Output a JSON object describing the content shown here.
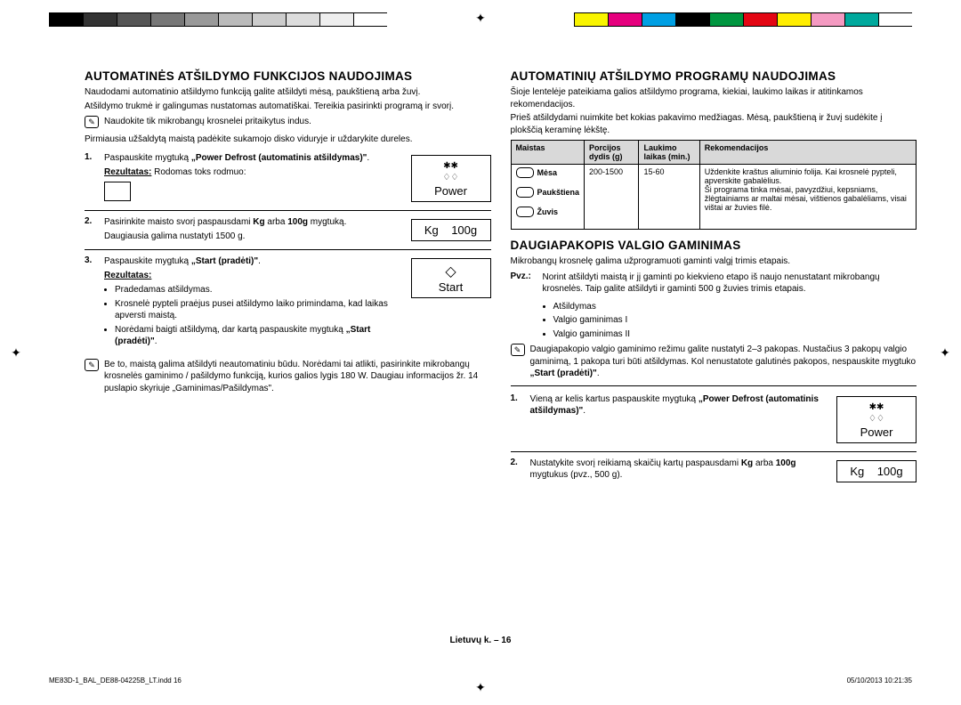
{
  "color_bars_left": [
    "#000",
    "#333",
    "#555",
    "#777",
    "#999",
    "#bbb",
    "#ccc",
    "#ddd",
    "#eee",
    "#fff"
  ],
  "color_bars_right": [
    "#f9f400",
    "#e6007e",
    "#009fe3",
    "#000",
    "#009640",
    "#e30613",
    "#ffed00",
    "#f49ac1",
    "#00a99d",
    "#fff"
  ],
  "left": {
    "h2": "AUTOMATINĖS ATŠILDYMO FUNKCIJOS NAUDOJIMAS",
    "p1": "Naudodami automatinio atšildymo funkciją galite atšildyti mėsą, paukštieną arba žuvį.",
    "p2": "Atšildymo trukmė ir galingumas nustatomas automatiškai. Tereikia pasirinkti programą ir svorį.",
    "note1": "Naudokite tik mikrobangų krosnelei pritaikytus indus.",
    "p3": "Pirmiausia užšaldytą maistą padėkite sukamojo disko viduryje ir uždarykite dureles.",
    "step1_num": "1.",
    "step1_a": "Paspauskite mygtuką ",
    "step1_b": "„Power Defrost (automatinis atšildymas)\"",
    "step1_c": ".",
    "step1_res_label": "Rezultatas:",
    "step1_res": " Rodomas toks rodmuo:",
    "power_label": "Power",
    "step2_num": "2.",
    "step2_a": "Pasirinkite maisto svorį paspausdami ",
    "step2_kg": "Kg",
    "step2_b": " arba ",
    "step2_100g": "100g",
    "step2_c": " mygtuką.",
    "step2_d": "Daugiausia galima nustatyti 1500 g.",
    "kg_btn": "Kg",
    "g100_btn": "100g",
    "step3_num": "3.",
    "step3_a": "Paspauskite mygtuką ",
    "step3_b": "„Start (pradėti)\"",
    "step3_c": ".",
    "step3_res_label": "Rezultatas:",
    "start_label": "Start",
    "step3_li1": "Pradedamas atšildymas.",
    "step3_li2": "Krosnelė pypteli praėjus pusei atšildymo laiko primindama, kad laikas apversti maistą.",
    "step3_li3_a": "Norėdami baigti atšildymą, dar kartą paspauskite mygtuką ",
    "step3_li3_b": "„Start (pradėti)\"",
    "step3_li3_c": ".",
    "note2": "Be to, maistą galima atšildyti neautomatiniu būdu. Norėdami tai atlikti, pasirinkite mikrobangų krosnelės gaminimo / pašildymo funkciją, kurios galios lygis 180 W. Daugiau informacijos žr. 14 puslapio skyriuje „Gaminimas/Pašildymas\"."
  },
  "right": {
    "h2a": "AUTOMATINIŲ ATŠILDYMO PROGRAMŲ NAUDOJIMAS",
    "p1": "Šioje lentelėje pateikiama galios atšildymo programa, kiekiai, laukimo laikas ir atitinkamos rekomendacijos.",
    "p2": "Prieš atšildydami nuimkite bet kokias pakavimo medžiagas. Mėsą, paukštieną ir žuvį sudėkite į plokščią keraminę lėkštę.",
    "table": {
      "headers": [
        "Maistas",
        "Porcijos dydis (g)",
        "Laukimo laikas (min.)",
        "Rekomendacijos"
      ],
      "foods": [
        "Mėsa",
        "Paukštiena",
        "Žuvis"
      ],
      "portion": "200-1500",
      "wait": "15-60",
      "rec": "Uždenkite kraštus aliuminio folija. Kai krosnelė pypteli, apverskite gabalėlius.\nŠi programa tinka mėsai, pavyzdžiui, kepsniams, žlėgtainiams ar maltai mėsai, vištienos gabalėliams, visai vištai ar žuvies filė."
    },
    "h2b": "DAUGIAPAKOPIS VALGIO GAMINIMAS",
    "p3": "Mikrobangų krosnelę galima užprogramuoti gaminti valgį trimis etapais.",
    "pvz_label": "Pvz.:",
    "pvz_text": "Norint atšildyti maistą ir jį gaminti po kiekvieno etapo iš naujo nenustatant mikrobangų krosnelės. Taip galite atšildyti ir gaminti 500 g žuvies trimis etapais.",
    "li1": "Atšildymas",
    "li2": "Valgio gaminimas I",
    "li3": "Valgio gaminimas II",
    "note3_a": "Daugiapakopio valgio gaminimo režimu galite nustatyti 2–3 pakopas. Nustačius 3 pakopų valgio gaminimą, 1 pakopa turi būti atšildymas. Kol nenustatote galutinės pakopos, nespauskite mygtuko ",
    "note3_b": "„Start (pradėti)\"",
    "note3_c": ".",
    "rstep1_num": "1.",
    "rstep1_a": "Vieną ar kelis kartus paspauskite mygtuką ",
    "rstep1_b": "„Power Defrost (automatinis atšildymas)\"",
    "rstep1_c": ".",
    "rstep2_num": "2.",
    "rstep2_a": "Nustatykite svorį reikiamą skaičių kartų paspausdami ",
    "rstep2_kg": "Kg",
    "rstep2_b": " arba ",
    "rstep2_100g": "100g",
    "rstep2_c": " mygtukus (pvz., 500 g)."
  },
  "footer": {
    "page": "Lietuvų k. – 16",
    "file": "ME83D-1_BAL_DE88-04225B_LT.indd   16",
    "date": "05/10/2013   10:21:35"
  }
}
